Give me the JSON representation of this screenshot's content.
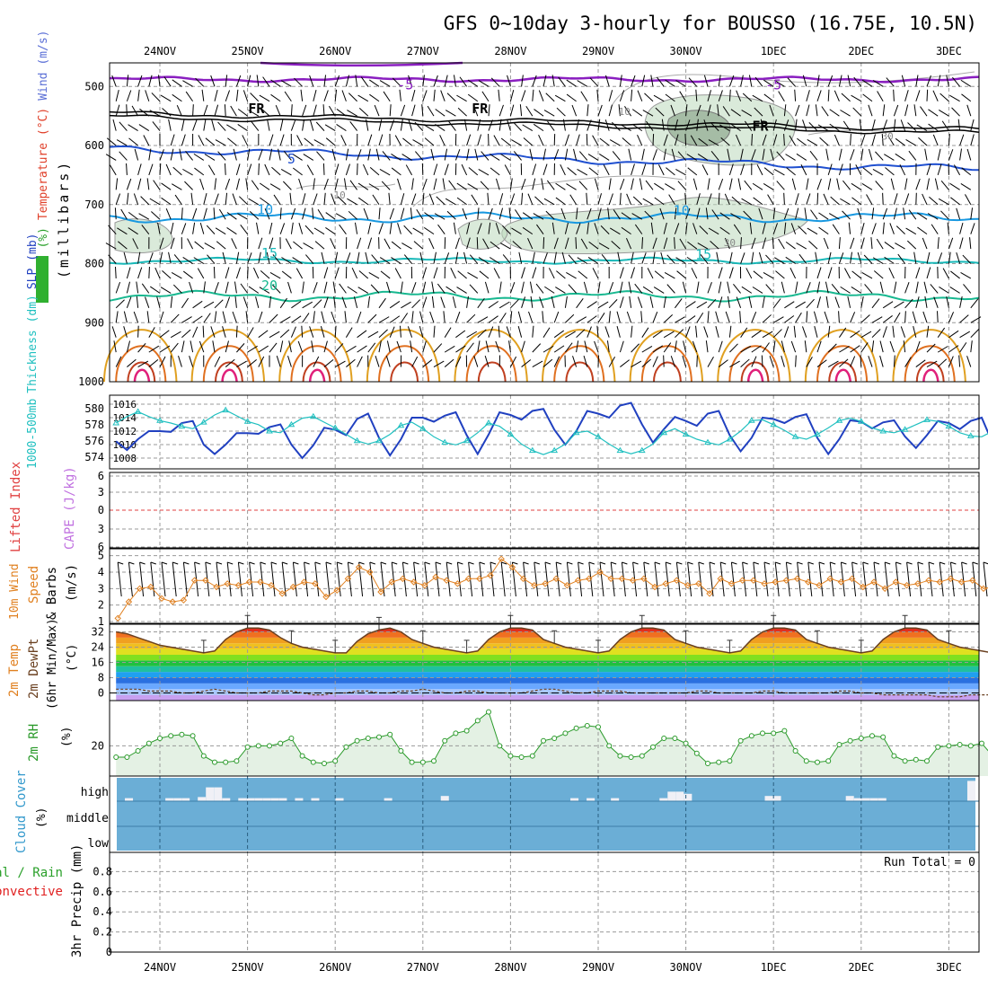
{
  "header": {
    "title": "GFS 0~10day 3-hourly for BOUSSO (16.75E, 10.5N)"
  },
  "colors": {
    "rh": "#2aa02a",
    "temperature": "#e0402a",
    "wind": "#5b6fd6",
    "slp": "#2040c0",
    "thickness": "#20c0c0",
    "lifted_index": "#e04040",
    "cape": "#c070e0",
    "wind10m": "#e08020",
    "rh2m": "#2a9a2a",
    "cloud": "#3399cc",
    "cloud_bg": "#6baed6",
    "precip_total": "#2aa02a",
    "precip_conv": "#e02020"
  },
  "chart_data": [
    {
      "id": "upper",
      "type": "line",
      "x": [
        "24NOV",
        "25NOV",
        "26NOV",
        "27NOV",
        "28NOV",
        "29NOV",
        "30NOV",
        "1DEC",
        "2DEC",
        "3DEC"
      ],
      "ylabel_parts": [
        "RH (%)",
        "Temperature (°C)",
        "Wind (m/s)"
      ],
      "ylabel_units": "(millibars)",
      "yticks": [
        500,
        600,
        700,
        800,
        900,
        1000
      ],
      "ylim": [
        460,
        1000
      ],
      "contour_labels": [
        {
          "text": "-5",
          "p": 505,
          "t": 2.8
        },
        {
          "text": "-5",
          "p": 505,
          "t": 7.0
        },
        {
          "text": "FR",
          "p": 545,
          "t": 1.1
        },
        {
          "text": "FR",
          "p": 545,
          "t": 3.65
        },
        {
          "text": "FR",
          "p": 575,
          "t": 6.85
        },
        {
          "text": "5",
          "p": 630,
          "t": 1.5
        },
        {
          "text": "10",
          "p": 716,
          "t": 1.2
        },
        {
          "text": "10",
          "p": 718,
          "t": 5.95
        },
        {
          "text": "15",
          "p": 790,
          "t": 1.25
        },
        {
          "text": "15",
          "p": 792,
          "t": 6.2
        },
        {
          "text": "20",
          "p": 845,
          "t": 1.25
        },
        {
          "text": "10",
          "p": 548,
          "t": 5.3
        },
        {
          "text": "30",
          "p": 590,
          "t": 8.3
        },
        {
          "text": "10",
          "p": 690,
          "t": 2.05
        },
        {
          "text": "30",
          "p": 770,
          "t": 6.5
        }
      ]
    },
    {
      "id": "slp",
      "type": "line",
      "ylabel_parts": [
        "1000-500mb",
        "Thickness (dm)",
        "SLP (mb)"
      ],
      "yticks_left": [
        574,
        576,
        578,
        580
      ],
      "yticks_right": [
        1008,
        1010,
        1012,
        1014,
        1016
      ],
      "series": [
        {
          "name": "SLP (mb)",
          "values": [
            1010.5,
            1009.2,
            1010.8,
            1012.0,
            1012.0,
            1011.9,
            1013.2,
            1013.5,
            1010.0,
            1008.6,
            1010.0,
            1011.7,
            1011.7,
            1011.6,
            1012.6,
            1013.0,
            1010.0,
            1008.0,
            1009.9,
            1012.5,
            1012.2,
            1011.4,
            1013.8,
            1014.6,
            1011.0,
            1008.4,
            1010.8,
            1014.0,
            1014.0,
            1013.4,
            1014.3,
            1014.8,
            1011.4,
            1008.6,
            1011.5,
            1014.8,
            1014.4,
            1013.7,
            1015.0,
            1015.3,
            1012.2,
            1010.0,
            1012.0,
            1015.0,
            1014.6,
            1014.0,
            1015.8,
            1016.2,
            1013.0,
            1010.3,
            1012.3,
            1014.1,
            1013.5,
            1012.8,
            1014.6,
            1015.0,
            1011.4,
            1009.0,
            1011.0,
            1014.0,
            1013.8,
            1013.2,
            1014.1,
            1014.5,
            1011.0,
            1008.6,
            1010.8,
            1013.6,
            1013.4,
            1012.4,
            1013.3,
            1013.6,
            1011.2,
            1009.5,
            1011.4,
            1013.5,
            1013.2,
            1012.3,
            1013.5,
            1014.0,
            1010.2,
            1008.0,
            1010.5,
            1012.5,
            1012.2,
            1011.4,
            1012.4,
            1012.6,
            1010.5,
            1009.0,
            1010.9,
            1012.7,
            1012.2,
            1011.5,
            1013.1,
            1014.0
          ]
        },
        {
          "name": "1000-500mb Thickness (dm)",
          "values": [
            578.2,
            579.0,
            579.6,
            579.0,
            578.5,
            578.2,
            577.8,
            577.5,
            578.3,
            579.2,
            579.8,
            579.1,
            578.4,
            578.0,
            577.2,
            577.0,
            578.0,
            578.8,
            579.0,
            578.3,
            577.6,
            576.8,
            576.0,
            575.6,
            576.0,
            576.8,
            577.9,
            578.3,
            577.5,
            576.5,
            575.8,
            575.5,
            576.0,
            577.0,
            578.2,
            577.8,
            576.8,
            575.6,
            574.8,
            574.3,
            574.8,
            575.6,
            577.0,
            577.2,
            576.5,
            575.6,
            574.8,
            574.4,
            574.8,
            575.6,
            577.0,
            577.5,
            576.8,
            576.2,
            575.8,
            575.5,
            576.2,
            577.2,
            578.5,
            578.6,
            578.0,
            577.3,
            576.5,
            576.2,
            576.8,
            577.6,
            578.5,
            578.8,
            578.4,
            577.6,
            577.2,
            577.0,
            577.4,
            578.0,
            578.6,
            578.4,
            577.8,
            577.0,
            576.6,
            576.5,
            577.2,
            578.0,
            578.6,
            578.2,
            577.4,
            576.8,
            576.4,
            576.5,
            577.4,
            578.2,
            578.7,
            578.0,
            577.2,
            576.0,
            575.2,
            574.6
          ]
        }
      ]
    },
    {
      "id": "cape",
      "type": "line",
      "ylabel_parts": [
        "Lifted Index",
        "CAPE (J/kg)"
      ],
      "yticks": [
        "-6",
        "-3",
        "0",
        "3",
        "6"
      ]
    },
    {
      "id": "wind10m",
      "type": "line",
      "ylabel_parts": [
        "10m Wind",
        "Speed",
        "& Barbs",
        "(m/s)"
      ],
      "yticks": [
        1,
        2,
        3,
        4,
        5
      ],
      "ylim": [
        1,
        5.2
      ],
      "series": [
        {
          "name": "10m Wind Speed",
          "values": [
            1.2,
            2.2,
            3.0,
            3.1,
            2.4,
            2.2,
            2.3,
            3.5,
            3.5,
            3.1,
            3.3,
            3.2,
            3.4,
            3.4,
            3.2,
            2.7,
            3.1,
            3.4,
            3.3,
            2.5,
            2.9,
            3.6,
            4.3,
            4.0,
            2.8,
            3.4,
            3.6,
            3.4,
            3.2,
            3.7,
            3.5,
            3.3,
            3.6,
            3.6,
            3.8,
            4.8,
            4.3,
            3.6,
            3.2,
            3.3,
            3.6,
            3.2,
            3.5,
            3.6,
            4.0,
            3.6,
            3.6,
            3.5,
            3.6,
            3.1,
            3.3,
            3.5,
            3.2,
            3.3,
            2.7,
            3.6,
            3.3,
            3.5,
            3.5,
            3.3,
            3.4,
            3.5,
            3.6,
            3.4,
            3.2,
            3.6,
            3.4,
            3.6,
            3.1,
            3.4,
            3.0,
            3.4,
            3.2,
            3.3,
            3.5,
            3.4,
            3.6,
            3.4,
            3.5,
            3.0,
            3.1,
            3.3,
            3.5,
            2.9,
            3.2,
            3.6,
            3.3,
            3.4,
            3.5,
            3.1,
            3.0,
            3.4,
            3.3,
            3.6,
            3.2,
            3.0
          ]
        }
      ]
    },
    {
      "id": "temp2m",
      "type": "area",
      "ylabel_parts": [
        "2m Temp",
        "2m DewPt",
        "(6hr Min/Max)",
        "(°C)"
      ],
      "yticks": [
        0,
        8,
        16,
        24,
        32
      ],
      "ylim": [
        -4,
        36
      ],
      "series": [
        {
          "name": "2m Temp",
          "values": [
            32,
            31,
            29,
            27,
            25,
            24,
            23,
            22,
            21,
            22,
            28,
            32,
            34,
            34,
            33,
            29,
            26,
            24,
            23,
            22,
            21,
            21,
            27,
            31,
            33,
            34,
            32,
            28,
            26,
            24,
            23,
            22,
            21,
            22,
            28,
            32,
            34,
            34,
            33,
            28,
            26,
            24,
            23,
            22,
            21,
            22,
            28,
            32,
            34,
            34,
            33,
            28,
            26,
            24,
            23,
            22,
            21,
            22,
            28,
            32,
            34,
            34,
            33,
            28,
            26,
            24,
            23,
            22,
            21,
            22,
            28,
            32,
            34,
            34,
            33,
            28,
            26,
            24,
            23,
            22,
            21,
            22,
            28,
            32,
            34,
            34,
            33,
            28,
            26,
            24,
            23,
            22,
            21,
            21,
            20,
            20
          ]
        },
        {
          "name": "2m DewPt",
          "values": [
            2,
            2,
            2,
            1,
            1,
            1,
            0,
            0,
            1,
            2,
            1,
            0,
            0,
            0,
            1,
            1,
            1,
            0,
            -1,
            -1,
            0,
            0,
            1,
            1,
            0,
            0,
            1,
            1,
            2,
            1,
            0,
            0,
            1,
            1,
            0,
            0,
            0,
            0,
            1,
            2,
            2,
            1,
            0,
            0,
            1,
            1,
            1,
            0,
            0,
            0,
            0,
            0,
            0,
            1,
            1,
            0,
            0,
            0,
            0,
            1,
            1,
            0,
            0,
            0,
            0,
            0,
            1,
            1,
            0,
            0,
            -1,
            -1,
            -1,
            -1,
            -1,
            -2,
            -2,
            -2,
            -1,
            -1,
            -1,
            -1,
            -2,
            -2,
            -2,
            -1,
            -1,
            -1,
            -2,
            -2,
            -2,
            -2,
            -2,
            -2,
            -2,
            -2
          ]
        }
      ]
    },
    {
      "id": "rh2m",
      "type": "area",
      "ylabel_parts": [
        "2m RH",
        "(%)"
      ],
      "yticks": [
        20
      ],
      "ylim": [
        8,
        38
      ],
      "series": [
        {
          "name": "2m RH",
          "values": [
            15.5,
            15.5,
            18,
            21,
            23,
            24,
            24.5,
            24,
            16,
            13.5,
            13.5,
            14,
            19.5,
            20,
            20,
            21,
            23,
            16,
            13.5,
            13,
            14,
            19.5,
            22,
            23,
            23.5,
            24.5,
            18,
            13.5,
            13.5,
            14,
            22,
            25,
            26,
            30,
            33.5,
            20,
            16,
            15.5,
            16,
            22,
            23,
            25,
            27,
            28,
            27.5,
            20,
            16,
            15.5,
            16,
            19.5,
            23,
            23,
            21,
            17,
            13,
            13.5,
            14,
            22,
            24,
            25,
            25,
            26,
            18,
            14,
            13.5,
            14,
            20.5,
            22,
            23,
            24,
            23.5,
            16,
            14,
            14.5,
            14,
            19.5,
            20,
            20.5,
            20,
            21,
            16,
            13.5,
            14,
            14.5,
            17,
            18,
            19,
            19,
            20,
            16,
            13,
            13.5,
            13.5,
            16,
            18,
            19,
            20,
            21
          ]
        }
      ]
    },
    {
      "id": "cloud",
      "type": "bar",
      "ylabel_parts": [
        "Cloud Cover",
        "(%)"
      ],
      "ytick_labels": [
        "high",
        "middle",
        "low"
      ],
      "series": [
        {
          "name": "high",
          "values": [
            0,
            10,
            0,
            0,
            0,
            0,
            10,
            10,
            10,
            0,
            15,
            60,
            60,
            10,
            0,
            10,
            10,
            10,
            10,
            10,
            10,
            0,
            10,
            0,
            10,
            0,
            0,
            10,
            0,
            0,
            0,
            0,
            0,
            10,
            0,
            0,
            0,
            0,
            0,
            0,
            20,
            0,
            0,
            0,
            0,
            0,
            0,
            0,
            0,
            0,
            0,
            0,
            0,
            0,
            0,
            0,
            10,
            0,
            10,
            0,
            0,
            10,
            0,
            0,
            0,
            0,
            0,
            10,
            40,
            40,
            30,
            0,
            0,
            0,
            0,
            0,
            0,
            0,
            0,
            0,
            20,
            20,
            0,
            0,
            0,
            0,
            0,
            0,
            0,
            0,
            20,
            10,
            10,
            10,
            10,
            0,
            0,
            0,
            0,
            0,
            0,
            0,
            0,
            0,
            0,
            90
          ]
        }
      ]
    },
    {
      "id": "precip",
      "type": "bar",
      "ylabel_parts": [
        "Total / Rain",
        "Convective",
        "3hr Precip (mm)"
      ],
      "yticks": [
        "0",
        "0.2",
        "0.4",
        "0.6",
        "0.8"
      ],
      "run_total": "Run Total = 0",
      "x": [
        "24NOV",
        "25NOV",
        "26NOV",
        "27NOV",
        "28NOV",
        "29NOV",
        "30NOV",
        "1DEC",
        "2DEC",
        "3DEC"
      ]
    }
  ]
}
